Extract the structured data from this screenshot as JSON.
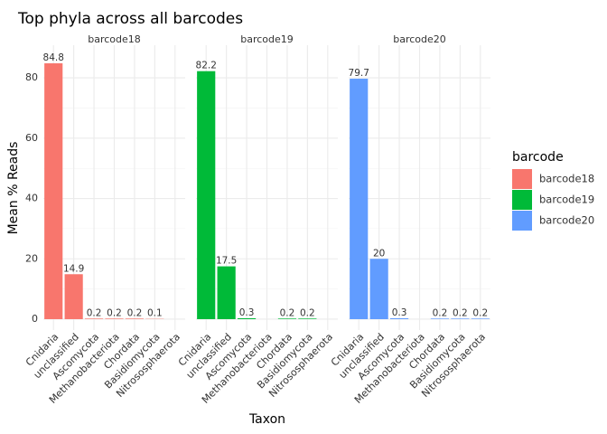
{
  "chart_data": {
    "type": "bar",
    "title": "Top phyla across all barcodes",
    "x_label": "Taxon",
    "y_label": "Mean % Reads",
    "legend_title": "barcode",
    "legend_position": "right",
    "categories": [
      "Cnidaria",
      "unclassified",
      "Ascomycota",
      "Methanobacteriota",
      "Chordata",
      "Basidiomycota",
      "Nitrososphaerota"
    ],
    "series": [
      {
        "name": "barcode18",
        "color": "#F8766D",
        "values": [
          84.8,
          14.9,
          0.2,
          0.2,
          0.2,
          0.1,
          null
        ]
      },
      {
        "name": "barcode19",
        "color": "#00BA38",
        "values": [
          82.2,
          17.5,
          0.3,
          null,
          0.2,
          0.2,
          null
        ]
      },
      {
        "name": "barcode20",
        "color": "#619CFF",
        "values": [
          79.7,
          20,
          0.3,
          null,
          0.2,
          0.2,
          0.2
        ]
      }
    ],
    "ylim": [
      -3.6,
      90.8
    ],
    "yticks": [
      0,
      20,
      40,
      60,
      80
    ],
    "grid": true
  }
}
